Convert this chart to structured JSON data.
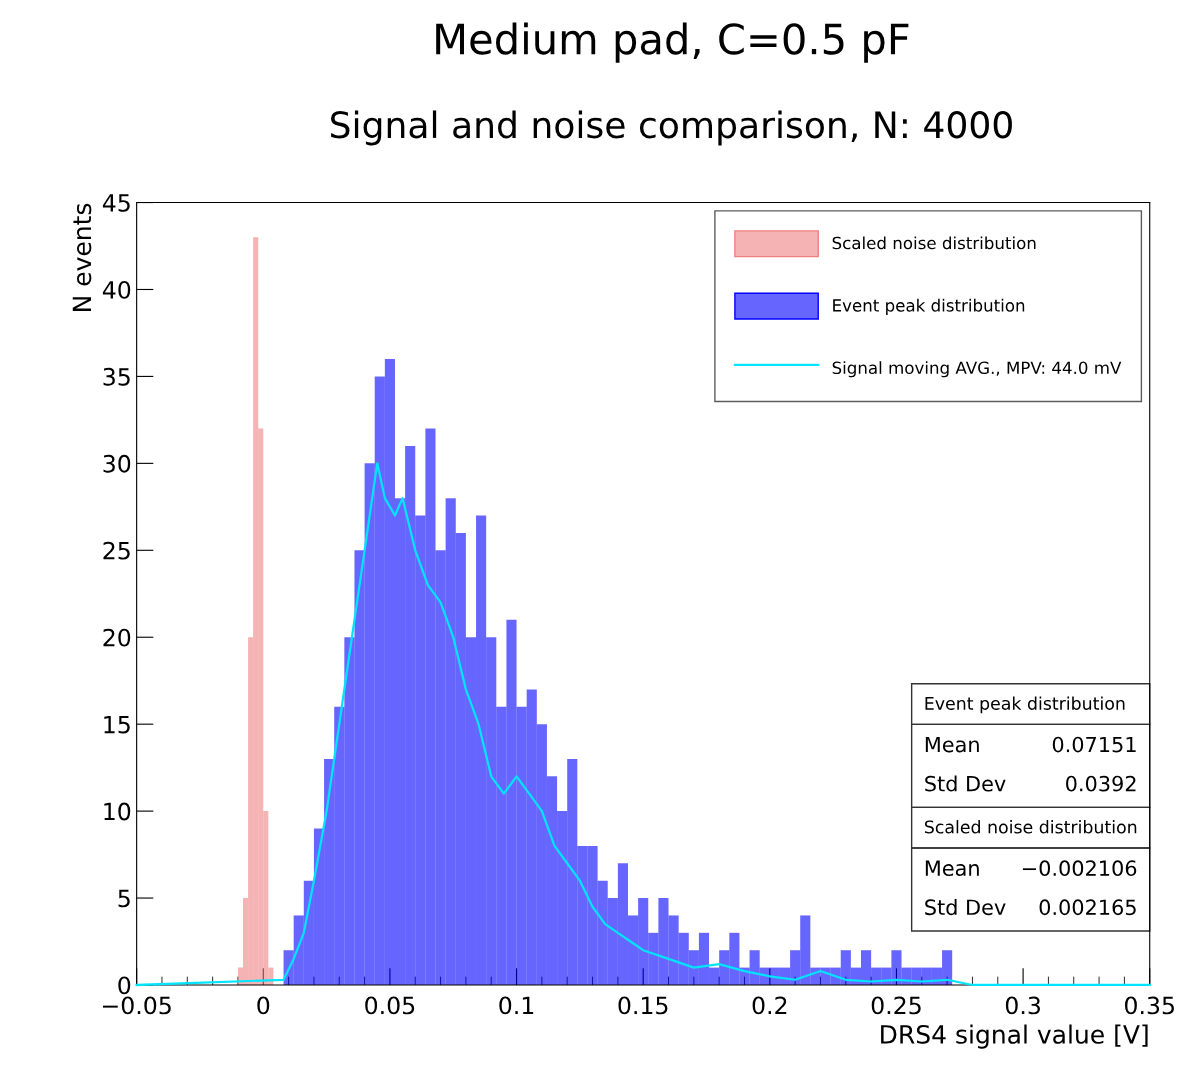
{
  "chart_data": {
    "type": "histogram",
    "title": "Medium pad, C=0.5 pF",
    "subtitle": "Signal and noise comparison, N: 4000",
    "xlabel": "DRS4 signal value [V]",
    "ylabel": "N events",
    "series": [
      {
        "name": "Scaled noise distribution",
        "type": "histogram",
        "color": "#f08080",
        "bins": [
          -0.01,
          -0.008,
          -0.006,
          -0.004,
          -0.002,
          0.0,
          0.002,
          0.004
        ],
        "values": [
          1,
          5,
          20,
          43,
          32,
          10,
          1
        ]
      },
      {
        "name": "Event peak distribution",
        "type": "histogram",
        "color": "#0000ff",
        "bins": [
          0.008,
          0.012,
          0.016,
          0.02,
          0.024,
          0.028,
          0.032,
          0.036,
          0.04,
          0.044,
          0.048,
          0.052,
          0.056,
          0.06,
          0.064,
          0.068,
          0.072,
          0.076,
          0.08,
          0.084,
          0.088,
          0.092,
          0.096,
          0.1,
          0.104,
          0.108,
          0.112,
          0.116,
          0.12,
          0.124,
          0.128,
          0.132,
          0.136,
          0.14,
          0.144,
          0.148,
          0.152,
          0.156,
          0.16,
          0.164,
          0.168,
          0.172,
          0.176,
          0.18,
          0.184,
          0.188,
          0.192,
          0.196,
          0.2,
          0.204,
          0.208,
          0.212,
          0.216,
          0.22,
          0.224,
          0.228,
          0.232,
          0.236,
          0.24,
          0.244,
          0.248,
          0.252,
          0.256,
          0.26,
          0.264,
          0.268,
          0.272
        ],
        "values": [
          2,
          4,
          6,
          9,
          13,
          16,
          20,
          25,
          30,
          35,
          36,
          28,
          31,
          27,
          32,
          25,
          28,
          26,
          20,
          27,
          20,
          16,
          21,
          16,
          17,
          15,
          12,
          10,
          13,
          8,
          8,
          6,
          5,
          7,
          4,
          5,
          3,
          5,
          4,
          3,
          2,
          3,
          1,
          2,
          3,
          1,
          2,
          1,
          1,
          1,
          2,
          4,
          1,
          1,
          1,
          2,
          1,
          2,
          1,
          1,
          2,
          1,
          1,
          1,
          1,
          2
        ]
      },
      {
        "name": "Signal moving AVG., MPV: 44.0 mV",
        "type": "line",
        "color": "#00e5ff",
        "x": [
          -0.05,
          0.008,
          0.012,
          0.016,
          0.02,
          0.025,
          0.03,
          0.035,
          0.04,
          0.045,
          0.048,
          0.052,
          0.055,
          0.06,
          0.065,
          0.07,
          0.075,
          0.08,
          0.085,
          0.09,
          0.095,
          0.1,
          0.105,
          0.11,
          0.115,
          0.12,
          0.125,
          0.13,
          0.135,
          0.14,
          0.145,
          0.15,
          0.16,
          0.17,
          0.18,
          0.19,
          0.2,
          0.21,
          0.22,
          0.23,
          0.24,
          0.25,
          0.26,
          0.27,
          0.28,
          0.35
        ],
        "values": [
          0,
          0.3,
          1.5,
          3,
          6,
          10,
          15,
          20,
          25,
          30,
          28,
          27,
          28,
          25,
          23,
          22,
          20,
          17,
          15,
          12,
          11,
          12,
          11,
          10,
          8,
          7,
          6,
          4.5,
          3.5,
          3,
          2.5,
          2,
          1.5,
          1,
          1.2,
          0.8,
          0.5,
          0.3,
          0.8,
          0.3,
          0.2,
          0.3,
          0.2,
          0.3,
          0,
          0
        ]
      }
    ],
    "xlim": [
      -0.05,
      0.35
    ],
    "xticks": [
      {
        "value": -0.05,
        "label": "−0.05"
      },
      0,
      0.05,
      0.1,
      0.15,
      0.2,
      0.25,
      0.3,
      0.35
    ],
    "ylim": [
      0,
      45
    ],
    "yticks": [
      0,
      5,
      10,
      15,
      20,
      25,
      30,
      35,
      40,
      45
    ],
    "grid": false,
    "legend": "top right",
    "annotations": [
      "Event peak distribution",
      "Mean",
      "0.07151",
      "Std Dev",
      "0.0392",
      "Scaled noise distribution",
      "Mean",
      "−0.002106",
      "Std Dev",
      "0.002165"
    ]
  }
}
